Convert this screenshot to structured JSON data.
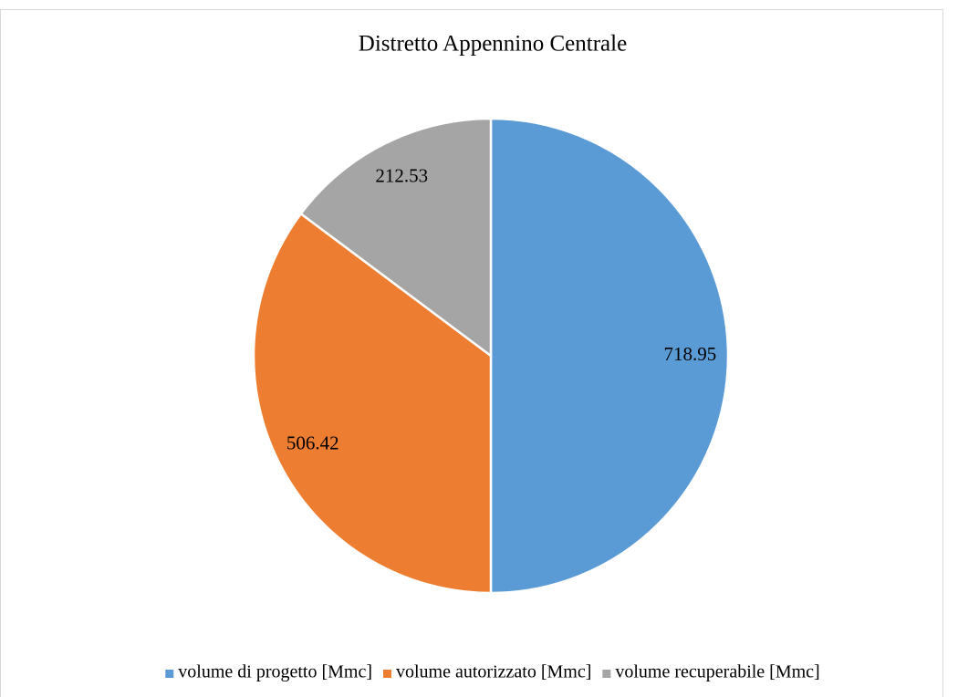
{
  "chart_data": {
    "type": "pie",
    "title": "Distretto Appennino Centrale",
    "categories": [
      "volume di progetto [Mmc]",
      "volume autorizzato [Mmc]",
      "volume recuperabile [Mmc]"
    ],
    "values": [
      718.95,
      506.42,
      212.53
    ],
    "colors": [
      "#5b9bd5",
      "#ed7d31",
      "#a5a5a5"
    ],
    "legend": "bottom"
  }
}
